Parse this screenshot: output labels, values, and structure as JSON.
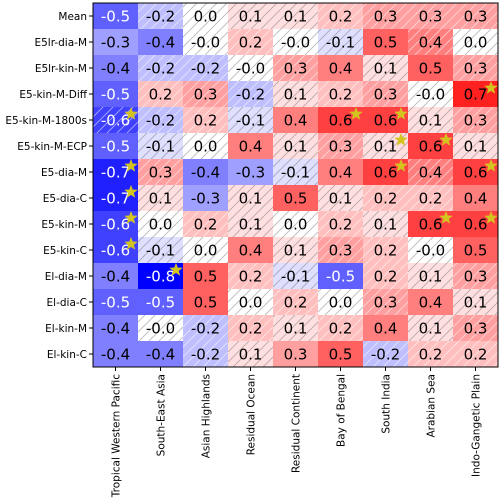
{
  "chart_data": {
    "type": "heatmap",
    "title": "",
    "xlabel": "",
    "ylabel": "",
    "rows": [
      "Mean",
      "E5lr-dia-M",
      "E5lr-kin-M",
      "E5-kin-M-Diff",
      "E5-kin-M-1800s",
      "E5-kin-M-ECP",
      "E5-dia-M",
      "E5-dia-C",
      "E5-kin-M",
      "E5-kin-C",
      "El-dia-M",
      "El-dia-C",
      "El-kin-M",
      "El-kin-C"
    ],
    "columns": [
      "Tropical Western Pacific",
      "South-East Asia",
      "Asian Highlands",
      "Residual Ocean",
      "Residual Continent",
      "Bay of Bengal",
      "South India",
      "Arabian Sea",
      "Indo-Gangetic Plain"
    ],
    "values": [
      [
        "-0.5",
        "-0.2",
        "0.0",
        "0.1",
        "0.1",
        "0.2",
        "0.3",
        "0.3",
        "0.3"
      ],
      [
        "-0.3",
        "-0.4",
        "-0.0",
        "0.2",
        "-0.0",
        "-0.1",
        "0.5",
        "0.4",
        "0.0"
      ],
      [
        "-0.4",
        "-0.2",
        "-0.2",
        "-0.0",
        "0.3",
        "0.4",
        "0.1",
        "0.5",
        "0.3"
      ],
      [
        "-0.5",
        "0.2",
        "0.3",
        "-0.2",
        "0.1",
        "0.2",
        "0.3",
        "-0.0",
        "0.7"
      ],
      [
        "-0.6",
        "-0.2",
        "0.2",
        "-0.1",
        "0.4",
        "0.6",
        "0.6",
        "0.1",
        "0.3"
      ],
      [
        "-0.5",
        "-0.1",
        "0.0",
        "0.4",
        "0.1",
        "0.3",
        "0.1",
        "0.6",
        "0.1"
      ],
      [
        "-0.7",
        "0.3",
        "-0.4",
        "-0.3",
        "-0.1",
        "0.4",
        "0.6",
        "0.4",
        "0.6"
      ],
      [
        "-0.7",
        "0.1",
        "-0.3",
        "0.1",
        "0.5",
        "0.1",
        "0.2",
        "0.2",
        "0.4"
      ],
      [
        "-0.6",
        "0.0",
        "0.2",
        "0.1",
        "0.0",
        "0.2",
        "0.1",
        "0.6",
        "0.6"
      ],
      [
        "-0.6",
        "-0.1",
        "0.0",
        "0.4",
        "0.1",
        "0.3",
        "0.2",
        "-0.0",
        "0.5"
      ],
      [
        "-0.4",
        "-0.8",
        "0.5",
        "0.2",
        "-0.1",
        "-0.5",
        "0.2",
        "0.1",
        "0.3"
      ],
      [
        "-0.5",
        "-0.5",
        "0.5",
        "0.0",
        "0.2",
        "0.0",
        "0.3",
        "0.4",
        "0.1"
      ],
      [
        "-0.4",
        "-0.0",
        "-0.2",
        "0.2",
        "0.1",
        "0.2",
        "0.4",
        "0.1",
        "0.3"
      ],
      [
        "-0.4",
        "-0.4",
        "-0.2",
        "0.1",
        "0.3",
        "0.5",
        "-0.2",
        "0.2",
        "0.2"
      ]
    ],
    "stars": [
      [
        3,
        8
      ],
      [
        4,
        0
      ],
      [
        4,
        5
      ],
      [
        4,
        6
      ],
      [
        6,
        0
      ],
      [
        6,
        6
      ],
      [
        6,
        8
      ],
      [
        7,
        0
      ],
      [
        8,
        0
      ],
      [
        8,
        7
      ],
      [
        8,
        8
      ],
      [
        9,
        0
      ],
      [
        10,
        1
      ],
      [
        5,
        7
      ],
      [
        5,
        6
      ]
    ],
    "hatched": [
      [
        0,
        1,
        1,
        1,
        1,
        1,
        1,
        1,
        1
      ],
      [
        0,
        0,
        1,
        1,
        1,
        1,
        0,
        1,
        1
      ],
      [
        0,
        1,
        1,
        1,
        1,
        0,
        1,
        0,
        1
      ],
      [
        0,
        1,
        1,
        1,
        1,
        1,
        1,
        1,
        0
      ],
      [
        1,
        1,
        1,
        1,
        0,
        0,
        0,
        1,
        1
      ],
      [
        0,
        1,
        1,
        0,
        1,
        1,
        1,
        0,
        1
      ],
      [
        0,
        1,
        0,
        0,
        1,
        0,
        0,
        1,
        0
      ],
      [
        0,
        1,
        0,
        1,
        0,
        1,
        1,
        1,
        0
      ],
      [
        0,
        1,
        1,
        1,
        1,
        1,
        1,
        0,
        0
      ],
      [
        0,
        1,
        1,
        0,
        1,
        1,
        1,
        1,
        0
      ],
      [
        0,
        0,
        0,
        1,
        1,
        0,
        1,
        1,
        1
      ],
      [
        0,
        0,
        0,
        1,
        1,
        1,
        1,
        0,
        1
      ],
      [
        0,
        1,
        1,
        1,
        1,
        1,
        0,
        1,
        1
      ],
      [
        0,
        0,
        1,
        1,
        0,
        0,
        1,
        1,
        1
      ]
    ],
    "colormap": "bwr",
    "vlim": [
      -0.8,
      0.8
    ],
    "colors": {
      "negative": "#0000ff",
      "neutral": "#ffffff",
      "positive": "#ff0000",
      "star": "#d4c420"
    }
  }
}
